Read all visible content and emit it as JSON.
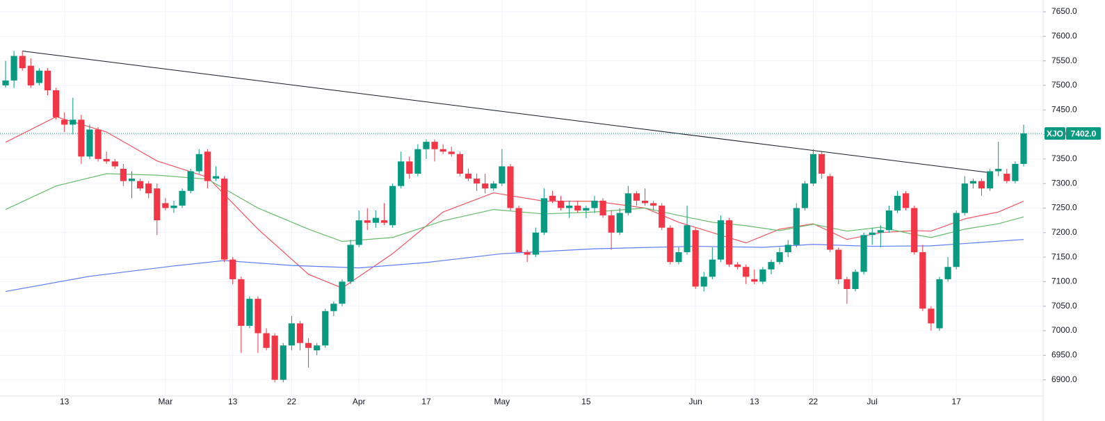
{
  "chart_data": {
    "type": "candlestick",
    "categories": [
      null,
      null,
      null,
      null,
      null,
      null,
      null,
      "13",
      null,
      null,
      null,
      null,
      null,
      null,
      null,
      null,
      null,
      null,
      null,
      "Mar",
      null,
      null,
      null,
      null,
      null,
      null,
      null,
      "13",
      null,
      null,
      null,
      null,
      null,
      null,
      "22",
      null,
      null,
      null,
      null,
      null,
      null,
      null,
      "Apr",
      null,
      null,
      null,
      null,
      null,
      null,
      null,
      "17",
      null,
      null,
      null,
      null,
      null,
      null,
      null,
      null,
      "May",
      null,
      null,
      null,
      null,
      null,
      null,
      null,
      null,
      null,
      "15",
      null,
      null,
      null,
      null,
      null,
      null,
      null,
      null,
      null,
      null,
      null,
      null,
      "Jun",
      null,
      null,
      null,
      null,
      null,
      null,
      "13",
      null,
      null,
      null,
      null,
      null,
      null,
      "22",
      null,
      null,
      null,
      null,
      null,
      null,
      "Jul",
      null,
      null,
      null,
      null,
      null,
      null,
      null,
      null,
      null,
      "17",
      null,
      null,
      null,
      null,
      null,
      null,
      null,
      null
    ],
    "open": [
      7500,
      7510,
      7560,
      7540,
      7505,
      7530,
      7490,
      7430,
      7420,
      7430,
      7355,
      7410,
      7350,
      7345,
      7330,
      7305,
      7305,
      7300,
      7290,
      7260,
      7250,
      7255,
      7285,
      7325,
      7365,
      7310,
      7310,
      7145,
      7105,
      7010,
      7065,
      6995,
      6990,
      6900,
      6970,
      7015,
      6975,
      6960,
      6970,
      7040,
      7055,
      7100,
      7175,
      7225,
      7220,
      7225,
      7215,
      7295,
      7345,
      7320,
      7370,
      7385,
      7370,
      7365,
      7360,
      7320,
      7310,
      7300,
      7290,
      7300,
      7335,
      7250,
      7160,
      7155,
      7200,
      7275,
      7265,
      7250,
      7255,
      7245,
      7250,
      7265,
      7235,
      7200,
      7240,
      7280,
      7265,
      7260,
      7255,
      7210,
      7140,
      7160,
      7205,
      7090,
      7110,
      7145,
      7225,
      7135,
      7130,
      7105,
      7100,
      7125,
      7140,
      7160,
      7175,
      7250,
      7300,
      7360,
      7315,
      7165,
      7105,
      7085,
      7120,
      7195,
      7200,
      7205,
      7245,
      7280,
      7250,
      7160,
      7045,
      7005,
      7105,
      7130,
      7240,
      7300,
      7305,
      7290,
      7325,
      7320,
      7305,
      7340
    ],
    "high": [
      7550,
      7570,
      7570,
      7555,
      7535,
      7535,
      7495,
      7445,
      7475,
      7440,
      7420,
      7415,
      7365,
      7350,
      7340,
      7325,
      7310,
      7305,
      7300,
      7270,
      7265,
      7290,
      7330,
      7370,
      7370,
      7335,
      7315,
      7150,
      7110,
      7070,
      7070,
      7005,
      6995,
      6975,
      7030,
      7020,
      6985,
      6975,
      7045,
      7060,
      7105,
      7185,
      7245,
      7250,
      7245,
      7260,
      7300,
      7365,
      7355,
      7380,
      7390,
      7390,
      7380,
      7375,
      7365,
      7330,
      7320,
      7320,
      7305,
      7370,
      7340,
      7255,
      7165,
      7210,
      7290,
      7285,
      7275,
      7265,
      7265,
      7255,
      7275,
      7270,
      7245,
      7250,
      7295,
      7285,
      7290,
      7265,
      7260,
      7215,
      7170,
      7255,
      7210,
      7120,
      7170,
      7235,
      7230,
      7140,
      7135,
      7125,
      7130,
      7145,
      7170,
      7185,
      7260,
      7305,
      7370,
      7365,
      7320,
      7170,
      7110,
      7125,
      7200,
      7210,
      7215,
      7255,
      7285,
      7285,
      7255,
      7175,
      7050,
      7110,
      7150,
      7245,
      7315,
      7310,
      7310,
      7330,
      7385,
      7330,
      7345,
      7420
    ],
    "low": [
      7495,
      7495,
      7530,
      7495,
      7500,
      7480,
      7430,
      7405,
      7400,
      7340,
      7350,
      7345,
      7340,
      7330,
      7295,
      7270,
      7285,
      7270,
      7195,
      7245,
      7240,
      7250,
      7280,
      7320,
      7290,
      7305,
      7140,
      7095,
      6955,
      7005,
      6955,
      6960,
      6895,
      6895,
      6960,
      6960,
      6925,
      6950,
      6965,
      7030,
      7050,
      7095,
      7170,
      7205,
      7210,
      7215,
      7210,
      7290,
      7310,
      7315,
      7350,
      7345,
      7360,
      7355,
      7315,
      7305,
      7285,
      7280,
      7285,
      7295,
      7245,
      7160,
      7140,
      7150,
      7195,
      7260,
      7245,
      7230,
      7240,
      7230,
      7240,
      7230,
      7165,
      7195,
      7235,
      7255,
      7255,
      7245,
      7205,
      7135,
      7135,
      7155,
      7085,
      7080,
      7105,
      7140,
      7130,
      7125,
      7095,
      7095,
      7095,
      7115,
      7135,
      7150,
      7170,
      7245,
      7295,
      7310,
      7160,
      7095,
      7055,
      7080,
      7115,
      7175,
      7170,
      7200,
      7240,
      7245,
      7155,
      7040,
      7000,
      7000,
      7100,
      7125,
      7235,
      7290,
      7275,
      7285,
      7315,
      7300,
      7300,
      7335
    ],
    "close": [
      7510,
      7560,
      7535,
      7500,
      7530,
      7490,
      7435,
      7420,
      7430,
      7355,
      7410,
      7350,
      7345,
      7335,
      7305,
      7310,
      7290,
      7280,
      7225,
      7250,
      7255,
      7285,
      7325,
      7360,
      7305,
      7315,
      7145,
      7105,
      7010,
      7065,
      6995,
      6965,
      6900,
      6970,
      7015,
      6975,
      6965,
      6970,
      7040,
      7055,
      7100,
      7175,
      7225,
      7220,
      7230,
      7220,
      7295,
      7345,
      7320,
      7370,
      7385,
      7370,
      7365,
      7360,
      7320,
      7310,
      7300,
      7290,
      7300,
      7335,
      7250,
      7160,
      7155,
      7200,
      7270,
      7265,
      7250,
      7255,
      7245,
      7250,
      7265,
      7235,
      7200,
      7240,
      7280,
      7265,
      7260,
      7255,
      7210,
      7140,
      7160,
      7215,
      7090,
      7110,
      7145,
      7225,
      7135,
      7130,
      7110,
      7100,
      7125,
      7140,
      7160,
      7175,
      7250,
      7300,
      7360,
      7320,
      7165,
      7105,
      7085,
      7120,
      7195,
      7200,
      7205,
      7245,
      7275,
      7250,
      7160,
      7045,
      7015,
      7105,
      7130,
      7240,
      7300,
      7305,
      7290,
      7325,
      7330,
      7305,
      7340,
      7402
    ],
    "up_color": "#089981",
    "down_color": "#f23645",
    "overlays": [
      {
        "color": "#f7525f",
        "x": [
          0,
          6,
          12,
          18,
          24,
          30,
          36,
          40,
          46,
          52,
          58,
          64,
          70,
          76,
          80,
          84,
          88,
          92,
          96,
          100,
          104,
          108,
          110,
          114,
          118,
          121
        ],
        "values": [
          7384,
          7436,
          7405,
          7346,
          7313,
          7207,
          7115,
          7087,
          7157,
          7242,
          7281,
          7264,
          7264,
          7250,
          7221,
          7200,
          7179,
          7207,
          7218,
          7186,
          7200,
          7204,
          7203,
          7228,
          7242,
          7264
        ]
      },
      {
        "color": "#66bb6a",
        "x": [
          0,
          6,
          12,
          18,
          24,
          30,
          36,
          40,
          46,
          52,
          58,
          64,
          70,
          76,
          80,
          84,
          88,
          92,
          96,
          100,
          104,
          108,
          110,
          114,
          118,
          121
        ],
        "values": [
          7247,
          7295,
          7320,
          7317,
          7309,
          7250,
          7207,
          7182,
          7190,
          7224,
          7247,
          7238,
          7242,
          7250,
          7235,
          7221,
          7214,
          7204,
          7217,
          7203,
          7211,
          7196,
          7190,
          7207,
          7218,
          7232
        ]
      },
      {
        "color": "#5b7cfa",
        "x": [
          0,
          10,
          20,
          26,
          34,
          42,
          50,
          59,
          70,
          82,
          90,
          96,
          103,
          110,
          121
        ],
        "values": [
          7080,
          7111,
          7132,
          7143,
          7133,
          7128,
          7139,
          7157,
          7167,
          7172,
          7170,
          7176,
          7172,
          7173,
          7186
        ]
      }
    ],
    "trendline": {
      "x": [
        2,
        117
      ],
      "values": [
        7570,
        7322
      ],
      "color": "#131722"
    },
    "last_price": {
      "symbol": "XJO",
      "value": 7402,
      "label": "7402.0",
      "color": "#089981"
    },
    "ylim": [
      6867,
      7674
    ],
    "yticks": [
      {
        "value": 6900,
        "label": "6900.0"
      },
      {
        "value": 6950,
        "label": "6950.0"
      },
      {
        "value": 7000,
        "label": "7000.0"
      },
      {
        "value": 7050,
        "label": "7050.0"
      },
      {
        "value": 7100,
        "label": "7100.0"
      },
      {
        "value": 7150,
        "label": "7150.0"
      },
      {
        "value": 7200,
        "label": "7200.0"
      },
      {
        "value": 7250,
        "label": "7250.0"
      },
      {
        "value": 7300,
        "label": "7300.0"
      },
      {
        "value": 7350,
        "label": "7350.0"
      },
      {
        "value": 7400,
        "label": "7400.0"
      },
      {
        "value": 7450,
        "label": "7450.0"
      },
      {
        "value": 7500,
        "label": "7500.0"
      },
      {
        "value": 7550,
        "label": "7550.0"
      },
      {
        "value": 7600,
        "label": "7600.0"
      },
      {
        "value": 7650,
        "label": "7650.0"
      }
    ],
    "grid": true
  }
}
